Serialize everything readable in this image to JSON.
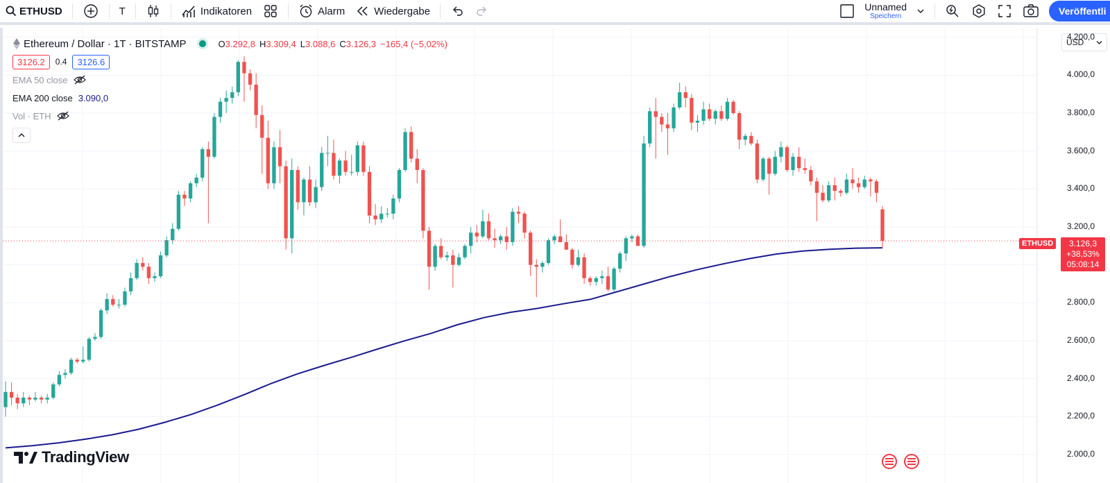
{
  "toolbar": {
    "symbol": "ETHUSD",
    "add_icon": "plus-circle-icon",
    "interval": "T",
    "chart_type_icon": "candles-icon",
    "indicators_label": "Indikatoren",
    "layouts_icon": "grid-icon",
    "alert_label": "Alarm",
    "replay_label": "Wiedergabe",
    "layout_name": "Unnamed",
    "layout_status": "Speichern",
    "publish_label": "Veröffentli"
  },
  "legend": {
    "title": "Ethereum / Dollar · 1T · BITSTAMP",
    "open_k": "O",
    "open": "3.292,8",
    "high_k": "H",
    "high": "3.309,4",
    "low_k": "L",
    "low": "3.088,6",
    "close_k": "C",
    "close": "3.126,3",
    "change": "−165,4 (−5,02%)",
    "bid": "3126.2",
    "spread": "0.4",
    "ask": "3126.6",
    "ema50_label": "EMA 50 close",
    "ema200_label": "EMA 200 close",
    "ema200_value": "3.090,0",
    "vol_label": "Vol · ETH"
  },
  "price_scale": {
    "currency": "USD",
    "ticks": [
      "4.200,0",
      "4.000,0",
      "3.800,0",
      "3.600,0",
      "3.400,0",
      "3.200,0",
      "2.800,0",
      "2.600,0",
      "2.400,0",
      "2.200,0",
      "2.000,0"
    ],
    "symbol_tag": "ETHUSD",
    "last_price": "3.126,3",
    "last_change": "+38,53%",
    "countdown": "05:08:14"
  },
  "logo": "TradingView",
  "colors": {
    "up": "#26a69a",
    "down": "#ef5350",
    "ema200": "#1a1a8e",
    "accent": "#2962ff"
  },
  "chart_data": {
    "type": "candlestick",
    "symbol": "ETHUSD",
    "ylim": [
      1850,
      4250
    ],
    "grid": true,
    "ohlc": [
      [
        2250,
        2385,
        2200,
        2330
      ],
      [
        2330,
        2380,
        2260,
        2300
      ],
      [
        2300,
        2320,
        2240,
        2270
      ],
      [
        2270,
        2330,
        2250,
        2300
      ],
      [
        2300,
        2310,
        2260,
        2290
      ],
      [
        2290,
        2330,
        2280,
        2300
      ],
      [
        2300,
        2310,
        2270,
        2290
      ],
      [
        2290,
        2320,
        2270,
        2300
      ],
      [
        2300,
        2380,
        2290,
        2370
      ],
      [
        2370,
        2440,
        2360,
        2420
      ],
      [
        2420,
        2450,
        2400,
        2430
      ],
      [
        2430,
        2510,
        2420,
        2500
      ],
      [
        2500,
        2510,
        2480,
        2490
      ],
      [
        2490,
        2570,
        2480,
        2500
      ],
      [
        2500,
        2620,
        2490,
        2610
      ],
      [
        2610,
        2640,
        2600,
        2620
      ],
      [
        2620,
        2770,
        2610,
        2760
      ],
      [
        2760,
        2850,
        2740,
        2820
      ],
      [
        2820,
        2840,
        2780,
        2790
      ],
      [
        2790,
        2820,
        2770,
        2790
      ],
      [
        2790,
        2880,
        2780,
        2860
      ],
      [
        2860,
        2960,
        2840,
        2930
      ],
      [
        2930,
        3030,
        2920,
        3010
      ],
      [
        3010,
        3040,
        2970,
        2990
      ],
      [
        2990,
        3010,
        2900,
        2930
      ],
      [
        2930,
        2960,
        2910,
        2940
      ],
      [
        2940,
        3070,
        2930,
        3050
      ],
      [
        3050,
        3150,
        3040,
        3130
      ],
      [
        3130,
        3220,
        3110,
        3190
      ],
      [
        3190,
        3390,
        3180,
        3370
      ],
      [
        3370,
        3390,
        3310,
        3350
      ],
      [
        3350,
        3440,
        3330,
        3430
      ],
      [
        3430,
        3480,
        3410,
        3460
      ],
      [
        3460,
        3620,
        3440,
        3610
      ],
      [
        3610,
        3650,
        3220,
        3570
      ],
      [
        3570,
        3800,
        3560,
        3780
      ],
      [
        3780,
        3880,
        3750,
        3860
      ],
      [
        3860,
        3920,
        3800,
        3880
      ],
      [
        3880,
        3940,
        3850,
        3910
      ],
      [
        3910,
        4080,
        3890,
        4070
      ],
      [
        4070,
        4100,
        3860,
        4010
      ],
      [
        4010,
        4030,
        3920,
        3950
      ],
      [
        3950,
        4010,
        3720,
        3790
      ],
      [
        3790,
        3840,
        3480,
        3670
      ],
      [
        3670,
        3760,
        3400,
        3430
      ],
      [
        3430,
        3650,
        3400,
        3620
      ],
      [
        3620,
        3710,
        3430,
        3520
      ],
      [
        3520,
        3550,
        3080,
        3140
      ],
      [
        3140,
        3560,
        3060,
        3500
      ],
      [
        3500,
        3520,
        3290,
        3330
      ],
      [
        3330,
        3460,
        3260,
        3450
      ],
      [
        3450,
        3520,
        3310,
        3330
      ],
      [
        3330,
        3450,
        3300,
        3410
      ],
      [
        3410,
        3620,
        3390,
        3590
      ],
      [
        3590,
        3680,
        3520,
        3590
      ],
      [
        3590,
        3660,
        3450,
        3470
      ],
      [
        3470,
        3560,
        3430,
        3550
      ],
      [
        3550,
        3600,
        3470,
        3490
      ],
      [
        3490,
        3580,
        3470,
        3490
      ],
      [
        3490,
        3650,
        3470,
        3630
      ],
      [
        3630,
        3650,
        3470,
        3490
      ],
      [
        3490,
        3520,
        3220,
        3260
      ],
      [
        3260,
        3320,
        3210,
        3240
      ],
      [
        3240,
        3310,
        3220,
        3270
      ],
      [
        3270,
        3300,
        3250,
        3270
      ],
      [
        3270,
        3370,
        3240,
        3350
      ],
      [
        3350,
        3510,
        3330,
        3500
      ],
      [
        3500,
        3720,
        3490,
        3700
      ],
      [
        3700,
        3730,
        3540,
        3560
      ],
      [
        3560,
        3610,
        3430,
        3500
      ],
      [
        3500,
        3510,
        3140,
        3180
      ],
      [
        3180,
        3200,
        2870,
        2990
      ],
      [
        2990,
        3110,
        2970,
        3100
      ],
      [
        3100,
        3140,
        3030,
        3040
      ],
      [
        3040,
        3070,
        3020,
        3050
      ],
      [
        3050,
        3080,
        2880,
        3000
      ],
      [
        3000,
        3060,
        2990,
        3040
      ],
      [
        3040,
        3110,
        3030,
        3100
      ],
      [
        3100,
        3200,
        3060,
        3170
      ],
      [
        3170,
        3210,
        3120,
        3150
      ],
      [
        3150,
        3290,
        3140,
        3230
      ],
      [
        3230,
        3270,
        3130,
        3140
      ],
      [
        3140,
        3190,
        3090,
        3130
      ],
      [
        3130,
        3160,
        3110,
        3150
      ],
      [
        3150,
        3200,
        3080,
        3120
      ],
      [
        3120,
        3300,
        3100,
        3280
      ],
      [
        3280,
        3310,
        3220,
        3270
      ],
      [
        3270,
        3280,
        3140,
        3170
      ],
      [
        3170,
        3180,
        2940,
        3000
      ],
      [
        3000,
        3030,
        2830,
        2990
      ],
      [
        2990,
        3020,
        2960,
        3010
      ],
      [
        3010,
        3140,
        3000,
        3130
      ],
      [
        3130,
        3160,
        3110,
        3150
      ],
      [
        3150,
        3240,
        3120,
        3120
      ],
      [
        3120,
        3160,
        3090,
        3080
      ],
      [
        3080,
        3090,
        2980,
        3000
      ],
      [
        3000,
        3080,
        2990,
        3040
      ],
      [
        3040,
        3060,
        2900,
        2930
      ],
      [
        2930,
        2940,
        2890,
        2910
      ],
      [
        2910,
        2940,
        2890,
        2930
      ],
      [
        2930,
        2970,
        2900,
        2940
      ],
      [
        2940,
        2990,
        2860,
        2870
      ],
      [
        2870,
        2990,
        2860,
        2980
      ],
      [
        2980,
        3070,
        2960,
        3060
      ],
      [
        3060,
        3150,
        3020,
        3140
      ],
      [
        3140,
        3160,
        3120,
        3150
      ],
      [
        3150,
        3160,
        3100,
        3100
      ],
      [
        3100,
        3680,
        3090,
        3640
      ],
      [
        3640,
        3830,
        3620,
        3810
      ],
      [
        3810,
        3880,
        3560,
        3780
      ],
      [
        3780,
        3800,
        3700,
        3740
      ],
      [
        3740,
        3800,
        3580,
        3720
      ],
      [
        3720,
        3850,
        3700,
        3830
      ],
      [
        3830,
        3960,
        3820,
        3910
      ],
      [
        3910,
        3940,
        3830,
        3880
      ],
      [
        3880,
        3900,
        3710,
        3750
      ],
      [
        3750,
        3790,
        3700,
        3760
      ],
      [
        3760,
        3860,
        3740,
        3820
      ],
      [
        3820,
        3850,
        3760,
        3770
      ],
      [
        3770,
        3820,
        3740,
        3810
      ],
      [
        3810,
        3840,
        3760,
        3770
      ],
      [
        3770,
        3880,
        3760,
        3860
      ],
      [
        3860,
        3870,
        3790,
        3800
      ],
      [
        3800,
        3810,
        3610,
        3660
      ],
      [
        3660,
        3690,
        3630,
        3680
      ],
      [
        3680,
        3700,
        3630,
        3640
      ],
      [
        3640,
        3660,
        3430,
        3450
      ],
      [
        3450,
        3570,
        3440,
        3560
      ],
      [
        3560,
        3570,
        3370,
        3480
      ],
      [
        3480,
        3600,
        3470,
        3570
      ],
      [
        3570,
        3650,
        3540,
        3620
      ],
      [
        3620,
        3630,
        3490,
        3500
      ],
      [
        3500,
        3590,
        3470,
        3570
      ],
      [
        3570,
        3620,
        3490,
        3510
      ],
      [
        3510,
        3560,
        3480,
        3500
      ],
      [
        3500,
        3520,
        3420,
        3440
      ],
      [
        3440,
        3460,
        3230,
        3380
      ],
      [
        3380,
        3420,
        3330,
        3340
      ],
      [
        3340,
        3440,
        3330,
        3420
      ],
      [
        3420,
        3460,
        3340,
        3390
      ],
      [
        3390,
        3400,
        3360,
        3380
      ],
      [
        3380,
        3480,
        3370,
        3450
      ],
      [
        3450,
        3510,
        3400,
        3430
      ],
      [
        3430,
        3460,
        3380,
        3410
      ],
      [
        3410,
        3470,
        3400,
        3450
      ],
      [
        3450,
        3460,
        3360,
        3440
      ],
      [
        3440,
        3450,
        3330,
        3380
      ],
      [
        3292.8,
        3309.4,
        3088.6,
        3126.3
      ]
    ],
    "ema200": [
      2035,
      2047,
      2062,
      2081,
      2104,
      2133,
      2170,
      2212,
      2262,
      2317,
      2375,
      2426,
      2470,
      2512,
      2556,
      2599,
      2638,
      2684,
      2722,
      2750,
      2770,
      2795,
      2818,
      2858,
      2898,
      2938,
      2974,
      3005,
      3033,
      3057,
      3073,
      3082,
      3088,
      3090
    ]
  }
}
